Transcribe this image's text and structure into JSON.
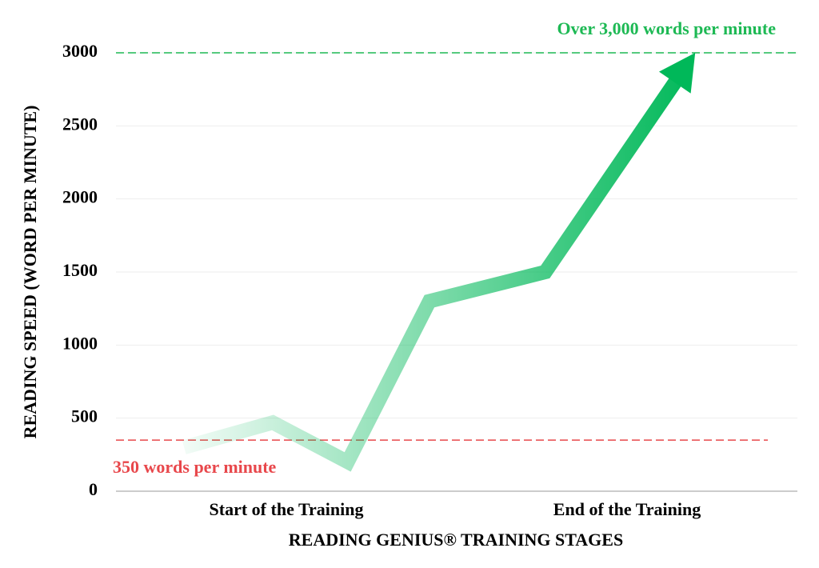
{
  "chart_data": {
    "type": "line",
    "x_label": "READING GENIUS® TRAINING STAGES",
    "y_label": "READING SPEED (WORD PER MINUTE)",
    "xlim": [
      0,
      1
    ],
    "xticks": [
      {
        "value": 0.25,
        "label": "Start of the Training"
      },
      {
        "value": 0.75,
        "label": "End of the Training"
      }
    ],
    "ylim": [
      0,
      3000
    ],
    "yticks": [
      0,
      500,
      1000,
      1500,
      2000,
      2500,
      3000
    ],
    "grid": true,
    "series": [
      {
        "color": "#00b859",
        "x": [
          0.1,
          0.23,
          0.34,
          0.46,
          0.63,
          0.85
        ],
        "values": [
          300,
          470,
          200,
          1300,
          1500,
          3000
        ]
      }
    ],
    "reference_lines": [
      {
        "value": 3000,
        "color": "#1db954",
        "label": "Over 3,000 words per minute"
      },
      {
        "value": 350,
        "color": "#e8474b",
        "label": "350 words per minute"
      }
    ]
  }
}
